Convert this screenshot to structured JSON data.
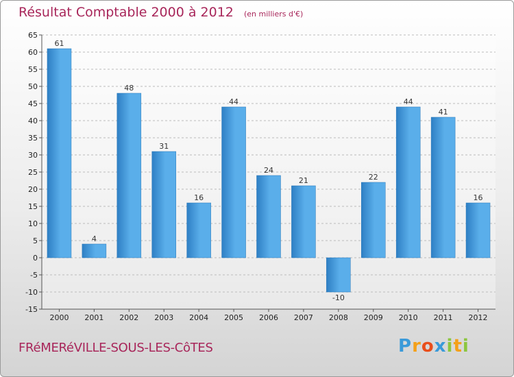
{
  "chart_data": {
    "type": "bar",
    "title": "Résultat Comptable 2000 à 2012",
    "subtitle": "(en milliers d'€)",
    "categories": [
      "2000",
      "2001",
      "2002",
      "2003",
      "2004",
      "2005",
      "2006",
      "2007",
      "2008",
      "2009",
      "2010",
      "2011",
      "2012"
    ],
    "values": [
      61,
      4,
      48,
      31,
      16,
      44,
      24,
      21,
      -10,
      22,
      44,
      41,
      16
    ],
    "value_labels": [
      "61",
      "4",
      "48",
      "31",
      "16",
      "44",
      "24",
      "21",
      "-10",
      "22",
      "44",
      "41",
      "16"
    ],
    "ylim": [
      -15,
      65
    ],
    "yticks": [
      -15,
      -10,
      -5,
      0,
      5,
      10,
      15,
      20,
      25,
      30,
      35,
      40,
      45,
      50,
      55,
      60,
      65
    ],
    "ytick_labels": [
      "-15",
      "-10",
      "-5",
      "0",
      "5",
      "10",
      "15",
      "20",
      "25",
      "30",
      "35",
      "40",
      "45",
      "50",
      "55",
      "60",
      "65"
    ],
    "grid": true,
    "xlabel": "",
    "ylabel": ""
  },
  "footer": {
    "commune": "FRéMERéVILLE-SOUS-LES-CôTES",
    "brand": [
      "P",
      "r",
      "o",
      "x",
      "i",
      "t",
      "i"
    ]
  },
  "colors": {
    "bar_light": "#5aaeea",
    "bar_dark": "#2e7fc4",
    "title": "#a8265a",
    "grid": "#bbbbbb",
    "brand": [
      "#3a9ad9",
      "#f4a019",
      "#e94e1b",
      "#3a9ad9",
      "#8cc63f",
      "#f4a019",
      "#8cc63f"
    ]
  }
}
